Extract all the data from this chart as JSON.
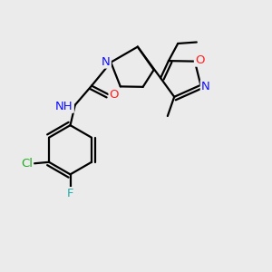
{
  "bg_color": "#ebebeb",
  "atom_colors": {
    "C": "#000000",
    "N": "#1010ff",
    "O": "#ff2020",
    "Cl": "#22aa22",
    "F": "#22aaaa",
    "H": "#000000"
  },
  "bond_color": "#000000",
  "bond_width": 1.6,
  "figsize": [
    3.0,
    3.0
  ],
  "dpi": 100
}
